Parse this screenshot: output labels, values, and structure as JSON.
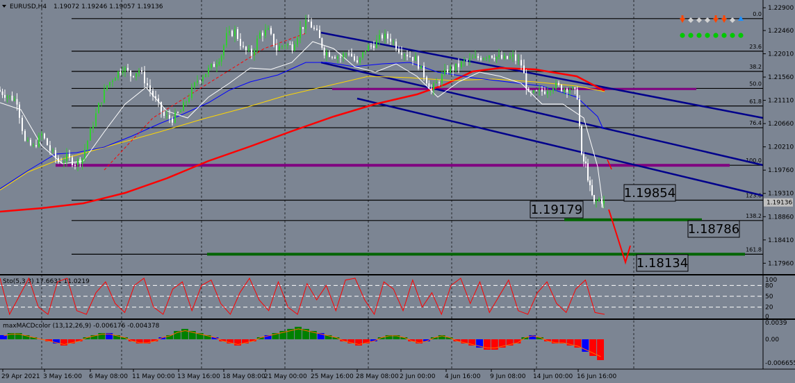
{
  "header": {
    "symbol": "EURUSD,H4",
    "ohlc": "1.19072 1.19246 1.19057 1.19136",
    "arrows": [
      "down",
      "diamond",
      "diamond",
      "diamond",
      "down",
      "down",
      "diamond",
      "up"
    ]
  },
  "colors": {
    "background": "#7c8593",
    "frame": "#000000",
    "bull": "#32cd32",
    "bear": "#ffffff",
    "ma_red": "#ff0000",
    "ma_blue": "#0000ff",
    "ma_gold": "#ffd700",
    "ma_white": "#ffffff",
    "channel": "#00008b",
    "zone_purple": "#800080",
    "zone_green": "#006400",
    "stoch": "#ff0000",
    "macd_up": "#008000",
    "macd_dn": "#ff0000",
    "macd_blue": "#0000ff",
    "arrow_red": "#ff0000",
    "sep_dashed": "#ffffff"
  },
  "price_axis": {
    "ticks": [
      "1.22900",
      "1.22460",
      "1.22010",
      "1.21560",
      "1.21110",
      "1.20660",
      "1.20210",
      "1.19760",
      "1.19310",
      "1.18860",
      "1.18410",
      "1.17960"
    ],
    "current": "1.19136",
    "range": [
      1.1775,
      1.2305
    ]
  },
  "time_axis": {
    "labels": [
      "29 Apr 2021",
      "3 May 16:00",
      "6 May 08:00",
      "11 May 00:00",
      "13 May 16:00",
      "18 May 08:00",
      "21 May 00:00",
      "25 May 16:00",
      "28 May 08:00",
      "2 Jun 00:00",
      "4 Jun 16:00",
      "9 Jun 08:00",
      "14 Jun 00:00",
      "16 Jun 16:00"
    ]
  },
  "fib_levels": [
    {
      "label": "0.0",
      "price": 1.2269
    },
    {
      "label": "23.6",
      "price": 1.2206
    },
    {
      "label": "38.2",
      "price": 1.2167
    },
    {
      "label": "50.0",
      "price": 1.2134
    },
    {
      "label": "61.8",
      "price": 1.21
    },
    {
      "label": "76.4",
      "price": 1.2058
    },
    {
      "label": "100.0",
      "price": 1.19854
    },
    {
      "label": "123.6",
      "price": 1.19179
    },
    {
      "label": "138.2",
      "price": 1.18786
    },
    {
      "label": "161.8",
      "price": 1.18134
    }
  ],
  "level_labels": [
    "1.19854",
    "1.19179",
    "1.18786",
    "1.18134"
  ],
  "stoch": {
    "title": "Sto(5,3,3) 17.6631 11.0219",
    "ticks": [
      "100",
      "80",
      "50",
      "20",
      "0"
    ]
  },
  "macd": {
    "title": "maxMACDcolor (13,12,26,9) -0.006176 -0.004378",
    "ticks": [
      "0.0039",
      "0.00",
      "-0.006655"
    ]
  },
  "chart_data": {
    "type": "candlestick",
    "symbol": "EURUSD",
    "timeframe": "H4",
    "ylim": [
      1.1775,
      1.2305
    ],
    "close_path": [
      [
        0,
        1.2131
      ],
      [
        14,
        1.212
      ],
      [
        28,
        1.211
      ],
      [
        40,
        1.203
      ],
      [
        52,
        1.202
      ],
      [
        64,
        1.2045
      ],
      [
        76,
        1.2015
      ],
      [
        88,
        1.1992
      ],
      [
        100,
        1.2
      ],
      [
        112,
        1.199
      ],
      [
        122,
        1.2
      ],
      [
        134,
        1.205
      ],
      [
        146,
        1.21
      ],
      [
        158,
        1.214
      ],
      [
        170,
        1.216
      ],
      [
        180,
        1.2175
      ],
      [
        192,
        1.216
      ],
      [
        204,
        1.217
      ],
      [
        216,
        1.214
      ],
      [
        228,
        1.211
      ],
      [
        240,
        1.208
      ],
      [
        252,
        1.2075
      ],
      [
        264,
        1.209
      ],
      [
        276,
        1.212
      ],
      [
        288,
        1.215
      ],
      [
        300,
        1.2165
      ],
      [
        312,
        1.218
      ],
      [
        322,
        1.22
      ],
      [
        330,
        1.2235
      ],
      [
        342,
        1.2245
      ],
      [
        354,
        1.221
      ],
      [
        366,
        1.22
      ],
      [
        378,
        1.224
      ],
      [
        390,
        1.2245
      ],
      [
        402,
        1.221
      ],
      [
        414,
        1.222
      ],
      [
        424,
        1.2215
      ],
      [
        436,
        1.225
      ],
      [
        448,
        1.2262
      ],
      [
        460,
        1.224
      ],
      [
        470,
        1.2205
      ],
      [
        482,
        1.22
      ],
      [
        494,
        1.2195
      ],
      [
        506,
        1.2205
      ],
      [
        518,
        1.218
      ],
      [
        530,
        1.221
      ],
      [
        542,
        1.222
      ],
      [
        554,
        1.2235
      ],
      [
        566,
        1.223
      ],
      [
        578,
        1.221
      ],
      [
        590,
        1.22
      ],
      [
        602,
        1.219
      ],
      [
        614,
        1.216
      ],
      [
        624,
        1.213
      ],
      [
        636,
        1.215
      ],
      [
        648,
        1.217
      ],
      [
        660,
        1.2175
      ],
      [
        672,
        1.2185
      ],
      [
        684,
        1.219
      ],
      [
        696,
        1.2195
      ],
      [
        708,
        1.22
      ],
      [
        718,
        1.2195
      ],
      [
        730,
        1.219
      ],
      [
        742,
        1.2195
      ],
      [
        754,
        1.218
      ],
      [
        764,
        1.212
      ],
      [
        776,
        1.2125
      ],
      [
        788,
        1.213
      ],
      [
        800,
        1.214
      ],
      [
        812,
        1.2135
      ],
      [
        824,
        1.2135
      ],
      [
        834,
        1.212
      ],
      [
        840,
        1.2
      ],
      [
        846,
        1.1985
      ],
      [
        852,
        1.194
      ],
      [
        858,
        1.191
      ],
      [
        866,
        1.192
      ],
      [
        872,
        1.1914
      ]
    ]
  }
}
